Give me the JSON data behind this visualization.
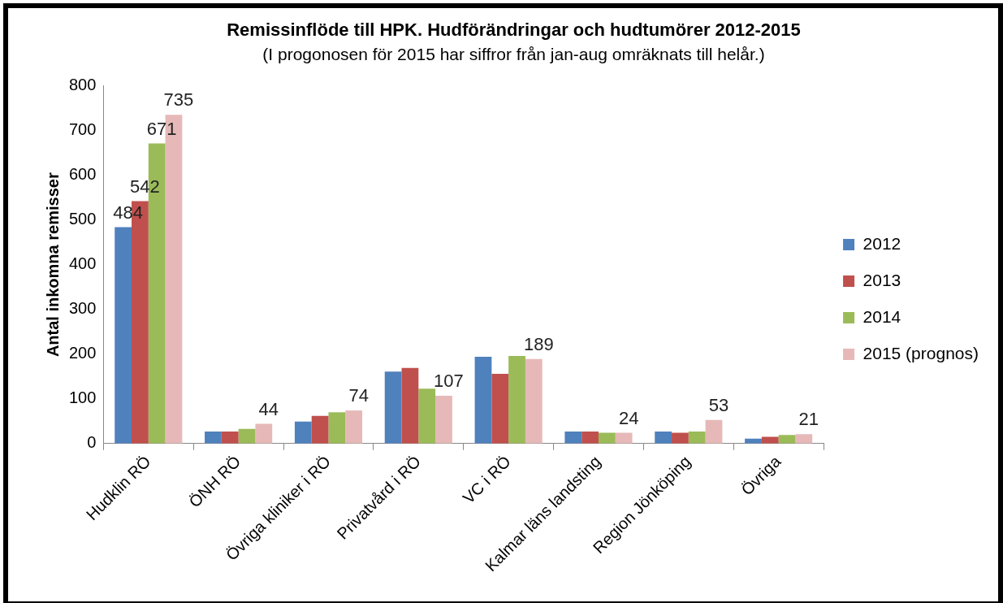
{
  "chart_data": {
    "type": "bar",
    "title": "Remissinflöde till HPK. Hudförändringar och hudtumörer 2012-2015",
    "subtitle": "(I progonosen för 2015 har siffror från jan-aug omräknats till helår.)",
    "ylabel": "Antal inkomna remisser",
    "categories": [
      "Hudklin RÖ",
      "ÖNH RÖ",
      "Övriga kliniker i RÖ",
      "Privatvård i RÖ",
      "VC i RÖ",
      "Kalmar läns landsting",
      "Region Jönköping",
      "Övriga"
    ],
    "series": [
      {
        "name": "2012",
        "color": "#4f81bd",
        "values": [
          484,
          27,
          49,
          161,
          194,
          27,
          27,
          11
        ],
        "value_labels": [
          "484",
          null,
          null,
          null,
          null,
          null,
          null,
          null
        ]
      },
      {
        "name": "2013",
        "color": "#c0504d",
        "values": [
          542,
          27,
          62,
          169,
          156,
          27,
          24,
          15
        ],
        "value_labels": [
          "542",
          null,
          null,
          null,
          null,
          null,
          null,
          null
        ]
      },
      {
        "name": "2014",
        "color": "#9bbb59",
        "values": [
          671,
          33,
          70,
          123,
          196,
          24,
          27,
          19
        ],
        "value_labels": [
          "671",
          null,
          null,
          null,
          null,
          null,
          null,
          null
        ]
      },
      {
        "name": "2015 (prognos)",
        "color": "#e6b9b8",
        "values": [
          735,
          44,
          74,
          107,
          189,
          24,
          53,
          21
        ],
        "value_labels": [
          "735",
          "44",
          "74",
          "107",
          "189",
          "24",
          "53",
          "21"
        ]
      }
    ],
    "ylim": [
      0,
      800
    ],
    "yticks": [
      0,
      100,
      200,
      300,
      400,
      500,
      600,
      700,
      800
    ],
    "grid": false,
    "legend": "right"
  }
}
